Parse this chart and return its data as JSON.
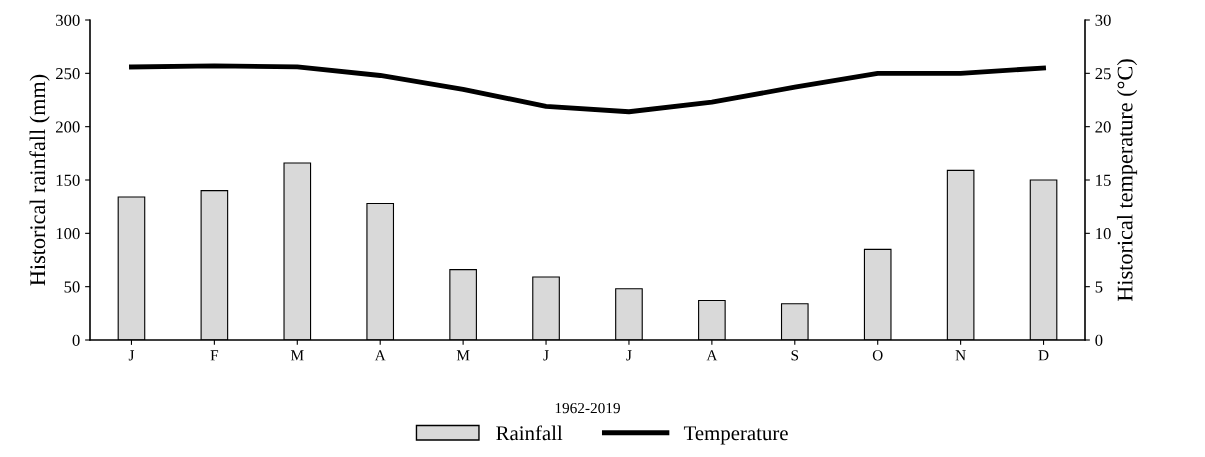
{
  "chart_data": {
    "type": "bar",
    "xlabel": "1962-2019",
    "ylabel": "Historical rainfall (mm)",
    "y2label": "Historical temperature (°C)",
    "categories": [
      "J",
      "F",
      "M",
      "A",
      "M",
      "J",
      "J",
      "A",
      "S",
      "O",
      "N",
      "D"
    ],
    "series": [
      {
        "name": "Rainfall",
        "color": "#d9d9d9",
        "values": [
          134,
          140,
          166,
          128,
          66,
          59,
          48,
          37,
          34,
          85,
          159,
          150
        ]
      },
      {
        "name": "Temperature",
        "type": "line",
        "axis": "y2",
        "color": "#000000",
        "values": [
          25.6,
          25.7,
          25.6,
          24.8,
          23.5,
          21.9,
          21.4,
          22.3,
          23.7,
          25.0,
          25.0,
          25.5
        ]
      }
    ],
    "ylim": [
      0,
      300
    ],
    "yticks": [
      0,
      50,
      100,
      150,
      200,
      250,
      300
    ],
    "y2lim": [
      0,
      30
    ],
    "y2ticks": [
      0,
      5,
      10,
      15,
      20,
      25,
      30
    ],
    "grid": false,
    "legend": "bottom",
    "marker": "none",
    "line_style": "solid"
  }
}
